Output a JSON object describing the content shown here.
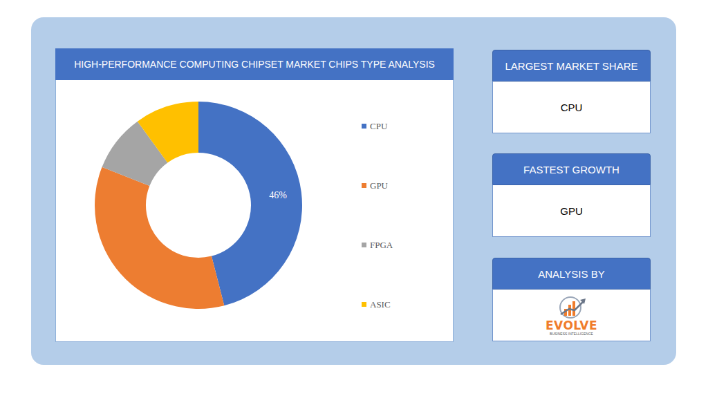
{
  "chart_data": {
    "type": "pie",
    "title": "HIGH-PERFORMANCE COMPUTING CHIPSET MARKET CHIPS TYPE ANALYSIS",
    "categories": [
      "CPU",
      "GPU",
      "FPGA",
      "ASIC"
    ],
    "values": [
      46,
      35,
      9,
      10
    ],
    "value_labels": [
      "46%",
      null,
      null,
      null
    ],
    "data_labels": true,
    "colors": [
      "#4472c4",
      "#ed7d31",
      "#a5a5a5",
      "#ffc000"
    ],
    "legend": "right"
  },
  "panels": [
    {
      "title": "LARGEST MARKET SHARE",
      "text": "CPU"
    },
    {
      "title": "FASTEST GROWTH",
      "text": "GPU"
    },
    {
      "title": "ANALYSIS BY",
      "logo": {
        "name": "EVOLVE",
        "tagline": "BUSINESS INTELLIGENCE"
      }
    }
  ]
}
